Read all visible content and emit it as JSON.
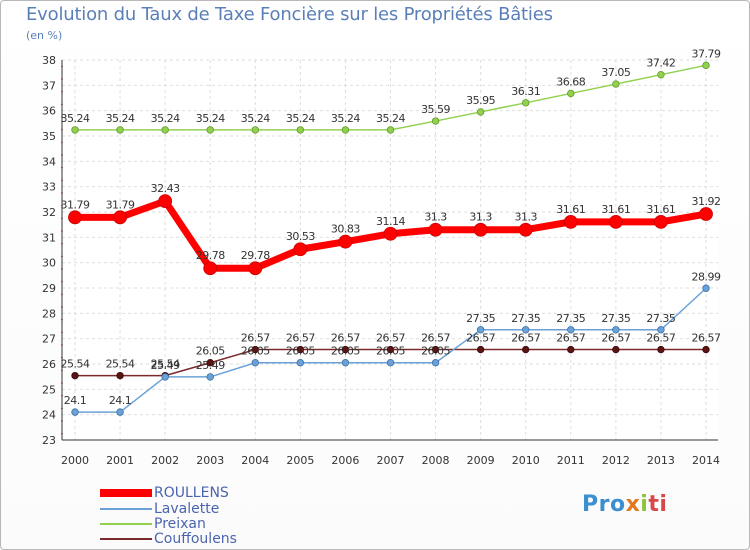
{
  "chart_data": {
    "type": "line",
    "title": "Evolution du Taux de Taxe Foncière sur les Propriétés Bâties",
    "subtitle": "(en %)",
    "x": [
      "2000",
      "2001",
      "2002",
      "2003",
      "2004",
      "2005",
      "2006",
      "2007",
      "2008",
      "2009",
      "2010",
      "2011",
      "2012",
      "2013",
      "2014"
    ],
    "ylim": [
      23,
      38
    ],
    "yticks": [
      23,
      24,
      25,
      26,
      27,
      28,
      29,
      30,
      31,
      32,
      33,
      34,
      35,
      36,
      37,
      38
    ],
    "grid": true,
    "legend_position": "bottom-left",
    "series": [
      {
        "name": "ROULLENS",
        "color": "#ff0000",
        "values": [
          31.79,
          31.79,
          32.43,
          29.78,
          29.78,
          30.53,
          30.83,
          31.14,
          31.3,
          31.3,
          31.3,
          31.61,
          31.61,
          31.61,
          31.92
        ],
        "labels": [
          "31.79",
          "31.79",
          "32.43",
          "29.78",
          "29.78",
          "30.53",
          "30.83",
          "31.14",
          "31.3",
          "31.3",
          "31.3",
          "31.61",
          "31.61",
          "31.61",
          "31.92"
        ]
      },
      {
        "name": "Lavalette",
        "color": "#6aa2d8",
        "values": [
          24.1,
          24.1,
          25.49,
          25.49,
          26.05,
          26.05,
          26.05,
          26.05,
          26.05,
          27.35,
          27.35,
          27.35,
          27.35,
          27.35,
          28.99
        ],
        "labels": [
          "24.1",
          "24.1",
          "25.49",
          "25.49",
          "26.05",
          "26.05",
          "26.05",
          "26.05",
          "26.05",
          "27.35",
          "27.35",
          "27.35",
          "27.35",
          "27.35",
          "28.99"
        ]
      },
      {
        "name": "Preixan",
        "color": "#92d050",
        "values": [
          35.24,
          35.24,
          35.24,
          35.24,
          35.24,
          35.24,
          35.24,
          35.24,
          35.59,
          35.95,
          36.31,
          36.68,
          37.05,
          37.42,
          37.79
        ],
        "labels": [
          "35.24",
          "35.24",
          "35.24",
          "35.24",
          "35.24",
          "35.24",
          "35.24",
          "35.24",
          "35.59",
          "35.95",
          "36.31",
          "36.68",
          "37.05",
          "37.42",
          "37.79"
        ]
      },
      {
        "name": "Couffoulens",
        "color": "#7a2a2a",
        "values": [
          25.54,
          25.54,
          25.54,
          26.05,
          26.57,
          26.57,
          26.57,
          26.57,
          26.57,
          26.57,
          26.57,
          26.57,
          26.57,
          26.57,
          26.57
        ],
        "labels": [
          "25.54",
          "25.54",
          "25.54",
          "26.05",
          "26.57",
          "26.57",
          "26.57",
          "26.57",
          "26.57",
          "26.57",
          "26.57",
          "26.57",
          "26.57",
          "26.57",
          "26.57"
        ]
      }
    ]
  },
  "logo": {
    "p1": "Pro",
    "p2": "x",
    "p3": "i",
    "p4": "ti"
  }
}
